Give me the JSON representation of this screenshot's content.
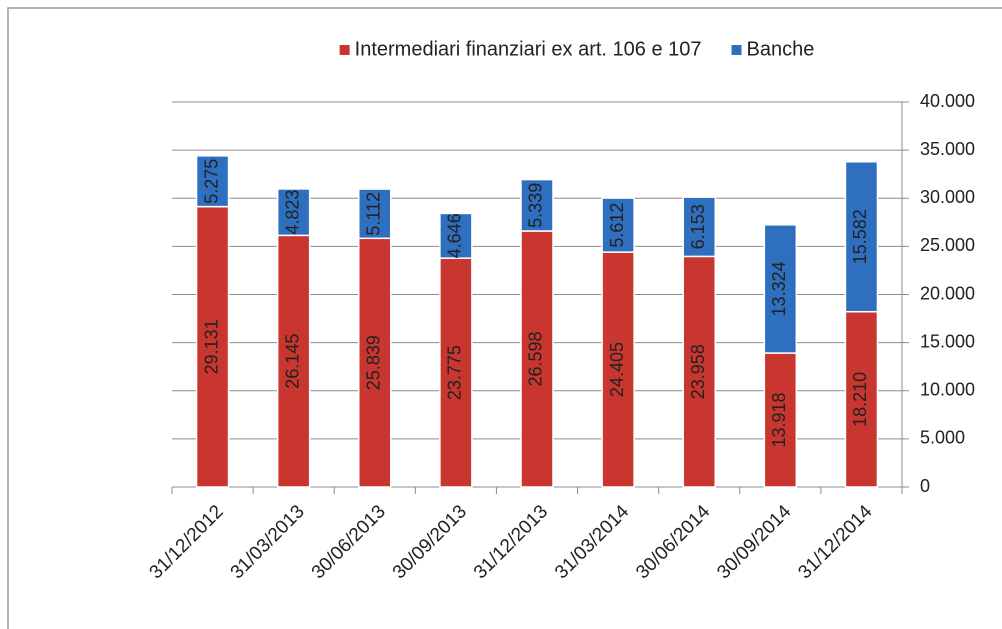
{
  "chart_data": {
    "type": "stacked_bar",
    "categories": [
      "31/12/2012",
      "31/03/2013",
      "30/06/2013",
      "30/09/2013",
      "31/12/2013",
      "31/03/2014",
      "30/06/2014",
      "30/09/2014",
      "31/12/2014"
    ],
    "series": [
      {
        "name": "Intermediari finanziari ex art. 106 e 107",
        "color": "#c8362f",
        "values": [
          29131,
          26145,
          25839,
          23775,
          26598,
          24405,
          23958,
          13918,
          18210
        ],
        "value_labels": [
          "29.131",
          "26.145",
          "25.839",
          "23.775",
          "26.598",
          "24.405",
          "23.958",
          "13.918",
          "18.210"
        ]
      },
      {
        "name": "Banche",
        "color": "#2f6fbf",
        "values": [
          5275,
          4823,
          5112,
          4646,
          5339,
          5612,
          6153,
          13324,
          15582
        ],
        "value_labels": [
          "5.275",
          "4.823",
          "5.112",
          "4.646",
          "5.339",
          "5.612",
          "6.153",
          "13.324",
          "15.582"
        ]
      }
    ],
    "ylim": [
      0,
      40000
    ],
    "yticks": [
      0,
      {
        "value": 5000,
        "label": "5.000"
      },
      {
        "value": 10000,
        "label": "10.000"
      },
      {
        "value": 15000,
        "label": "15.000"
      },
      {
        "value": 20000,
        "label": "20.000"
      },
      {
        "value": 25000,
        "label": "25.000"
      },
      {
        "value": 30000,
        "label": "30.000"
      },
      {
        "value": 35000,
        "label": "35.000"
      },
      {
        "value": 40000,
        "label": "40.000"
      }
    ],
    "grid": true,
    "legend": "top",
    "y_axis_side": "right"
  }
}
